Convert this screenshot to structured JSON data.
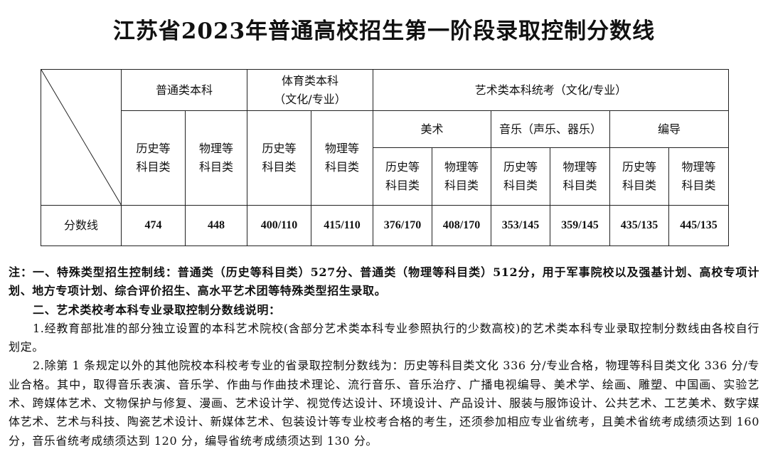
{
  "title": "江苏省2023年普通高校招生第一阶段录取控制分数线",
  "table": {
    "groups": {
      "general": "普通类本科",
      "sports": "体育类本科\n（文化/专业）",
      "art": "艺术类本科统考（文化/专业）"
    },
    "art_sub": {
      "fine_art": "美术",
      "music": "音乐（声乐、器乐）",
      "directing": "编导"
    },
    "history": "历史等\n科目类",
    "physics": "物理等\n科目类",
    "row_label": "分数线",
    "values": [
      "474",
      "448",
      "400/110",
      "415/110",
      "376/170",
      "408/170",
      "353/145",
      "359/145",
      "435/135",
      "445/135"
    ]
  },
  "notes": {
    "n1": "注：一、特殊类型招生控制线：普通类（历史等科目类）527分、普通类（物理等科目类）512分，用于军事院校以及强基计划、高校专项计划、地方专项计划、综合评价招生、高水平艺术团等特殊类型招生录取。",
    "n2": "二、艺术类校考本科专业录取控制分数线说明：",
    "n3": "1.经教育部批准的部分独立设置的本科艺术院校(含部分艺术类本科专业参照执行的少数高校)的艺术类本科专业录取控制分数线由各校自行划定。",
    "n4": "2.除第 1 条规定以外的其他院校本科校考专业的省录取控制分数线为：历史等科目类文化 336 分/专业合格，物理等科目类文化 336 分/专业合格。其中，取得音乐表演、音乐学、作曲与作曲技术理论、流行音乐、音乐治疗、广播电视编导、美术学、绘画、雕塑、中国画、实验艺术、跨媒体艺术、文物保护与修复、漫画、艺术设计学、视觉传达设计、环境设计、产品设计、服装与服饰设计、公共艺术、工艺美术、数字媒体艺术、艺术与科技、陶瓷艺术设计、新媒体艺术、包装设计等专业校考合格的考生，还须参加相应专业省统考，且美术省统考成绩须达到 160 分，音乐省统考成绩须达到 120 分，编导省统考成绩须达到 130 分。"
  }
}
